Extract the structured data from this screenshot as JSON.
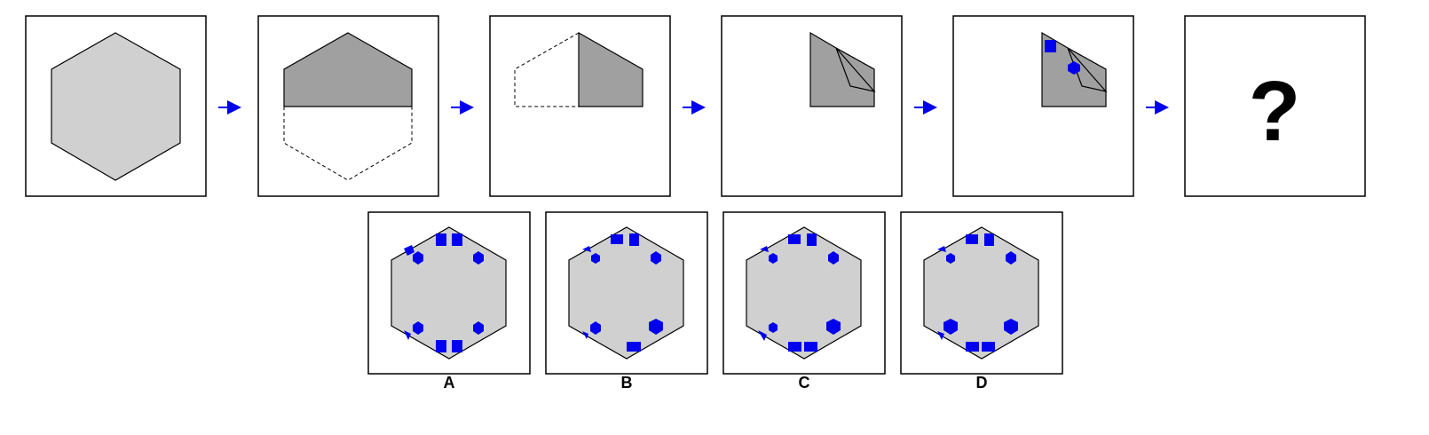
{
  "question_mark": "?",
  "options": [
    {
      "label": "A"
    },
    {
      "label": "B"
    },
    {
      "label": "C"
    },
    {
      "label": "D"
    }
  ],
  "colors": {
    "hexagon_light": "#d0d0d0",
    "hexagon_dark": "#a0a0a0",
    "marker": "#0000ee",
    "arrow": "#0000ee",
    "stroke": "#000000"
  }
}
